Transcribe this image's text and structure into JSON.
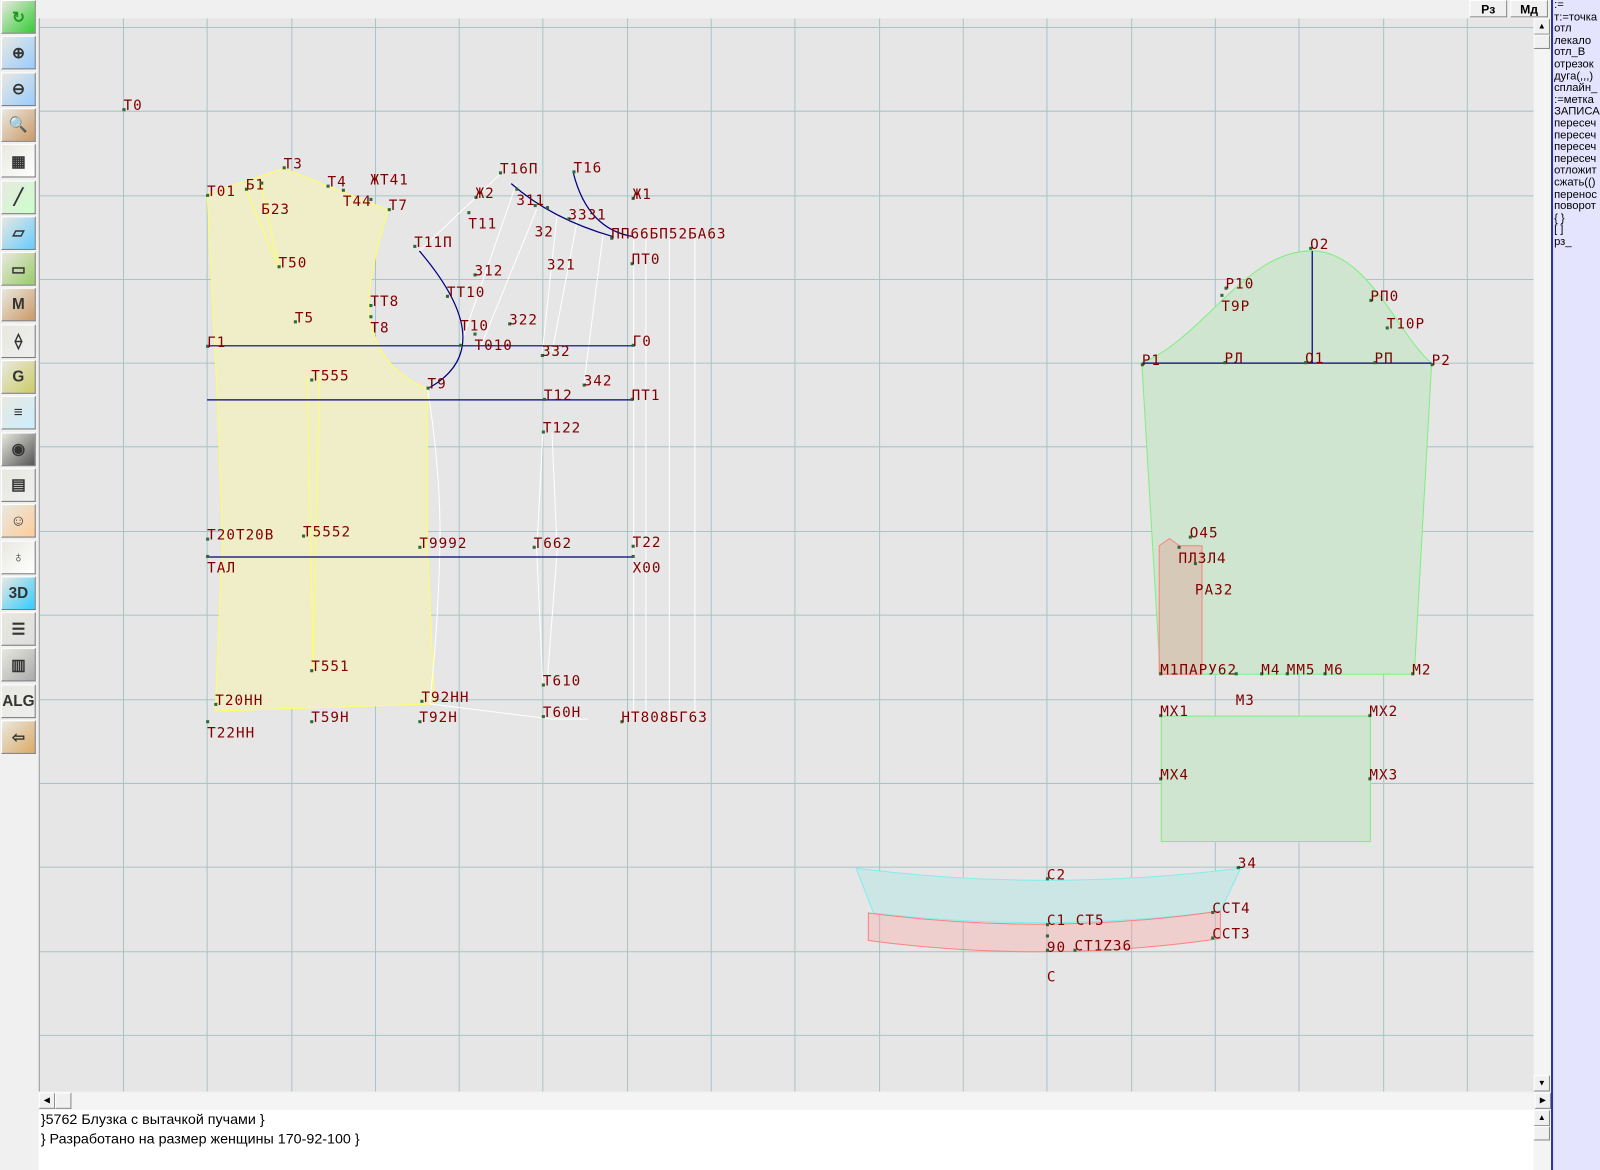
{
  "toolbar": {
    "icons": [
      "refresh-icon",
      "zoom-in-icon",
      "zoom-out-icon",
      "zoom-pattern-icon",
      "grid-icon",
      "line-segment-icon",
      "layout-map-icon",
      "pattern-piece-icon",
      "pattern-m-icon",
      "compass-icon",
      "pattern-g-icon",
      "measurements-icon",
      "camera-icon",
      "table-icon",
      "photo-icon",
      "jacket-icon",
      "3d-icon",
      "text-list-icon",
      "stack-icon",
      "alg-icon",
      "exit-icon"
    ],
    "glyphs": [
      "↻",
      "⊕",
      "⊖",
      "🔍",
      "▦",
      "╱",
      "▱",
      "▭",
      "M",
      "⟠",
      "G",
      "≡",
      "◉",
      "▤",
      "☺",
      "♁",
      "3D",
      "☰",
      "▥",
      "ALG",
      "⇦"
    ]
  },
  "topbar": {
    "rz_label": "Рз",
    "md_label": "Мд"
  },
  "right_panel": {
    "items": [
      ":=",
      "т:=точка",
      "отл",
      "лекало",
      "отл_В",
      "отрезок",
      "дуга(,,,)",
      "сплайн_",
      ":=метка",
      "ЗАПИСА",
      "пересеч",
      "пересеч",
      "пересеч",
      "пересеч",
      "отложит",
      "сжать(()",
      "перенос",
      "поворот",
      "{  }",
      "[  ]",
      "рз_"
    ]
  },
  "notes": {
    "line1": "}5762 Блузка с вытачкой пучами }",
    "line2": "} Разработано на размер женщины 170-92-100 }"
  },
  "drawing": {
    "colors": {
      "bodice_fill": "#efeec8",
      "bodice_stroke": "#ffff66",
      "sleeve_fill": "#cfe5cf",
      "sleeve_stroke": "#7fef7f",
      "collar_fill": "#cce6e6",
      "collar_stroke": "#80eeee",
      "stand_stroke": "#ff8080",
      "construction_line": "#000080",
      "label": "#800000",
      "grid": "#a8c4c8"
    },
    "labels": [
      "Т0",
      "Т3",
      "Т01",
      "Б1",
      "Б23",
      "Т4",
      "Т44",
      "ЖТ41",
      "Т7",
      "Т50",
      "Т5",
      "ТТ8",
      "Т8",
      "Г1",
      "Т555",
      "Т16П",
      "Т16",
      "Ж2",
      "311",
      "Т11",
      "32",
      "321",
      "3331",
      "Ж1",
      "ПП66БП52БА63",
      "ПТ0",
      "Т11П",
      "312",
      "ТТ10",
      "322",
      "Т010",
      "Т10",
      "Г0",
      "332",
      "Т9",
      "342",
      "Т12",
      "ПТ1",
      "Т122",
      "Т20Т20В",
      "Т5552",
      "Т9992",
      "Т662",
      "Т22",
      "ТАЛ",
      "Х00",
      "Т551",
      "Т610",
      "Т20НН",
      "Т92НН",
      "Т22НН",
      "Т59Н",
      "Т92Н",
      "Т60Н",
      "НТ808БГ63",
      "О2",
      "Р10",
      "Т9Р",
      "РП0",
      "Т10Р",
      "Р1",
      "РЛ",
      "О1",
      "РП",
      "Р2",
      "О45",
      "ПЛ3Л4",
      "РА32",
      "М1ПАРУ62",
      "М3",
      "М4",
      "ММ5",
      "М6",
      "М2",
      "МХ1",
      "МХ2",
      "МХ4",
      "МХ3",
      "С2",
      "34",
      "ССТ4",
      "С1 СТ5",
      "90",
      "ССТ3",
      "С",
      "СТ1Z36"
    ]
  }
}
